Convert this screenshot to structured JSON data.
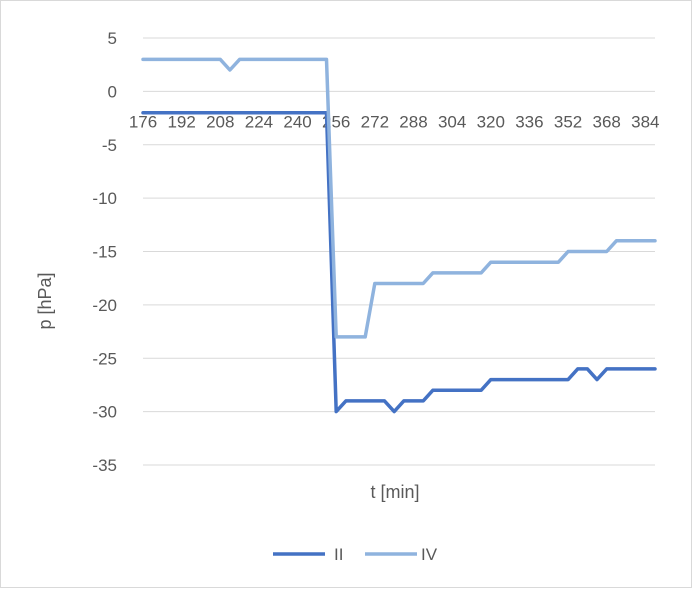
{
  "chart_data": {
    "type": "line",
    "xlabel": "t [min]",
    "ylabel": "p [hPa]",
    "ylim": [
      -35,
      5
    ],
    "yticks": [
      5,
      0,
      -5,
      -10,
      -15,
      -20,
      -25,
      -30,
      -35
    ],
    "x": [
      176,
      180,
      184,
      188,
      192,
      196,
      200,
      204,
      208,
      212,
      216,
      220,
      224,
      228,
      232,
      236,
      240,
      244,
      248,
      252,
      256,
      260,
      264,
      268,
      272,
      276,
      280,
      284,
      288,
      292,
      296,
      300,
      304,
      308,
      312,
      316,
      320,
      324,
      328,
      332,
      336,
      340,
      344,
      348,
      352,
      356,
      360,
      364,
      368,
      372,
      376,
      380,
      384,
      388
    ],
    "xtick_labels": [
      "176",
      "192",
      "208",
      "224",
      "240",
      "256",
      "272",
      "288",
      "304",
      "320",
      "336",
      "352",
      "368",
      "384"
    ],
    "grid": true,
    "legend_position": "bottom",
    "series": [
      {
        "name": "II",
        "color": "#4472c4",
        "values": [
          -2,
          -2,
          -2,
          -2,
          -2,
          -2,
          -2,
          -2,
          -2,
          -2,
          -2,
          -2,
          -2,
          -2,
          -2,
          -2,
          -2,
          -2,
          -2,
          -2,
          -30,
          -29,
          -29,
          -29,
          -29,
          -29,
          -30,
          -29,
          -29,
          -29,
          -28,
          -28,
          -28,
          -28,
          -28,
          -28,
          -27,
          -27,
          -27,
          -27,
          -27,
          -27,
          -27,
          -27,
          -27,
          -26,
          -26,
          -27,
          -26,
          -26,
          -26,
          -26,
          -26,
          -26
        ]
      },
      {
        "name": "IV",
        "color": "#8fb3de",
        "values": [
          3,
          3,
          3,
          3,
          3,
          3,
          3,
          3,
          3,
          2,
          3,
          3,
          3,
          3,
          3,
          3,
          3,
          3,
          3,
          3,
          -23,
          -23,
          -23,
          -23,
          -18,
          -18,
          -18,
          -18,
          -18,
          -18,
          -17,
          -17,
          -17,
          -17,
          -17,
          -17,
          -16,
          -16,
          -16,
          -16,
          -16,
          -16,
          -16,
          -16,
          -15,
          -15,
          -15,
          -15,
          -15,
          -14,
          -14,
          -14,
          -14,
          -14
        ]
      }
    ]
  }
}
